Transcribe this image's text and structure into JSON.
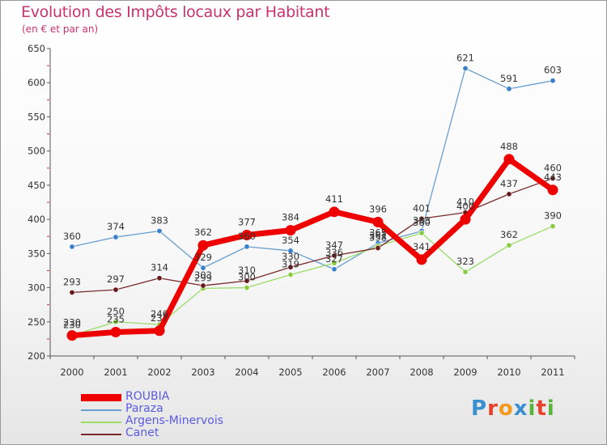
{
  "header": {
    "title": "Evolution des Impôts locaux par Habitant",
    "subtitle": "(en € et par an)"
  },
  "logo": {
    "text": "Proxiti",
    "letters": [
      "P",
      "r",
      "o",
      "x",
      "i",
      "t",
      "i"
    ],
    "colors": [
      "#3a8fd0",
      "#e8402a",
      "#f29a1c",
      "#3a8fd0",
      "#5ab33a",
      "#e8402a",
      "#5ab33a"
    ]
  },
  "chart_data": {
    "type": "line",
    "title": "Evolution des Impôts locaux par Habitant",
    "subtitle": "(en € et par an)",
    "xlabel": "",
    "ylabel": "",
    "categories": [
      "2000",
      "2001",
      "2002",
      "2003",
      "2004",
      "2005",
      "2006",
      "2007",
      "2008",
      "2009",
      "2010",
      "2011"
    ],
    "ylim": [
      200,
      650
    ],
    "yticks": [
      200,
      250,
      300,
      350,
      400,
      450,
      500,
      550,
      600,
      650
    ],
    "grid": false,
    "legend_position": "bottom-left",
    "series": [
      {
        "name": "ROUBIA",
        "color": "#ee0000",
        "bold": true,
        "values": [
          230,
          235,
          237,
          362,
          377,
          384,
          411,
          396,
          341,
          400,
          488,
          443
        ],
        "labels": [
          "230",
          "235",
          "237",
          "362",
          "377",
          "384",
          "411",
          "396",
          "341",
          "400",
          "488",
          "443"
        ]
      },
      {
        "name": "Paraza",
        "color": "#6a9fcf",
        "marker": "#3a7fc8",
        "values": [
          360,
          374,
          383,
          329,
          360,
          354,
          327,
          365,
          383,
          621,
          591,
          603
        ],
        "labels": [
          "360",
          "374",
          "383",
          "329",
          "360",
          "354",
          "327",
          "365",
          "383",
          "621",
          "591",
          "603"
        ]
      },
      {
        "name": "Argens-Minervois",
        "color": "#99dd66",
        "marker": "#88cc44",
        "values": [
          230,
          250,
          246,
          299,
          300,
          319,
          336,
          361,
          380,
          323,
          362,
          390
        ],
        "labels": [
          "230",
          "250",
          "246",
          "299",
          "300",
          "319",
          "336",
          "361",
          "380",
          "323",
          "362",
          "390"
        ]
      },
      {
        "name": "Canet",
        "color": "#7a2a2a",
        "marker": "#6a1a1a",
        "values": [
          293,
          297,
          314,
          303,
          310,
          330,
          347,
          358,
          401,
          410,
          437,
          460
        ],
        "labels": [
          "293",
          "297",
          "314",
          "303",
          "310",
          "330",
          "347",
          "358",
          "401",
          "410",
          "437",
          "460"
        ]
      }
    ]
  }
}
